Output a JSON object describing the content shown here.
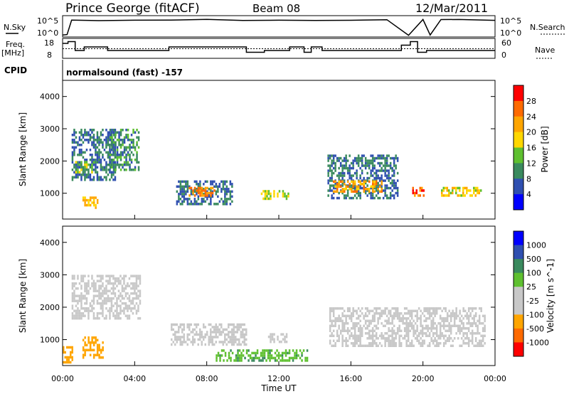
{
  "header": {
    "station": "Prince George (fitACF)",
    "beam": "Beam 08",
    "date": "12/Mar/2011"
  },
  "status_panel": {
    "nsky_label": "N.Sky",
    "nsky_ticks": [
      "10^5",
      "10^0"
    ],
    "nsearch_label": "N.Search",
    "nsearch_ticks": [
      "10^5",
      "10^0"
    ],
    "freq_label_1": "Freq.",
    "freq_label_2": "[MHz]",
    "freq_ticks": [
      "18",
      "8"
    ],
    "nave_label": "Nave",
    "nave_ticks": [
      "60",
      "0"
    ],
    "cpid_label": "CPID",
    "cpid_text": "normalsound (fast) -157"
  },
  "colors": {
    "power_scale": [
      "#0000ff",
      "#2f4fb0",
      "#3a8a5e",
      "#5fc030",
      "#ffd700",
      "#ffa500",
      "#ff6a00",
      "#ff0000"
    ],
    "velocity_scale": [
      "#ff0000",
      "#ff6a00",
      "#ffa500",
      "#c8c8c8",
      "#c8c8c8",
      "#5fc030",
      "#3a8a5e",
      "#2f4fb0",
      "#0000ff"
    ],
    "ground_scatter": "#c8c8c8"
  },
  "chart_data": [
    {
      "type": "line",
      "panel": "N.Sky / N.Search",
      "x_unit": "hours UT",
      "xlim": [
        0,
        24
      ],
      "series": [
        {
          "name": "N.Sky",
          "x": [
            0,
            0.25,
            0.5,
            2,
            4,
            6,
            8,
            10,
            12,
            14,
            16,
            18,
            19.2,
            20,
            20.4,
            21,
            22,
            24
          ],
          "values": [
            1,
            1,
            100000,
            100000,
            100000,
            100000,
            100000,
            100000,
            100000,
            100000,
            100000,
            100000,
            1,
            100000,
            1,
            100000,
            100000,
            100000
          ]
        }
      ]
    },
    {
      "type": "line",
      "panel": "Freq. / Nave",
      "x_unit": "hours UT",
      "xlim": [
        0,
        24
      ],
      "series": [
        {
          "name": "Freq.",
          "x": [
            0,
            0.3,
            0.7,
            1.2,
            2.5,
            5.9,
            10.2,
            11.2,
            12.6,
            13.4,
            13.8,
            14.4,
            15.7,
            18.8,
            19.3,
            19.7,
            20.2,
            21.3,
            24
          ],
          "values": [
            16,
            17,
            12,
            14,
            12,
            14,
            11,
            12,
            14,
            11,
            14,
            12,
            12,
            15,
            17,
            11,
            12,
            12,
            12
          ]
        },
        {
          "name": "Nave",
          "x": [
            0,
            24
          ],
          "values": [
            30,
            30
          ]
        }
      ]
    },
    {
      "type": "heatmap",
      "panel": "Power",
      "xlabel": "Time UT",
      "ylabel": "Slant Range [km]",
      "colorbar_label": "Power [dB]",
      "xlim": [
        0,
        24
      ],
      "ylim": [
        200,
        4500
      ],
      "xticks": [
        "00:00",
        "04:00",
        "08:00",
        "12:00",
        "16:00",
        "20:00",
        "00:00"
      ],
      "yticks": [
        "1000",
        "2000",
        "3000",
        "4000"
      ],
      "colorbar_ticks": [
        "4",
        "8",
        "12",
        "16",
        "20",
        "24",
        "28"
      ],
      "echo_regions": [
        {
          "t0": 0.5,
          "t1": 3.0,
          "r0": 1400,
          "r1": 3000,
          "level": 8
        },
        {
          "t0": 0.7,
          "t1": 1.8,
          "r0": 1600,
          "r1": 2000,
          "level": 14
        },
        {
          "t0": 1.1,
          "t1": 2.0,
          "r0": 500,
          "r1": 900,
          "level": 20
        },
        {
          "t0": 2.5,
          "t1": 4.3,
          "r0": 1700,
          "r1": 3000,
          "level": 10
        },
        {
          "t0": 6.3,
          "t1": 9.5,
          "r0": 600,
          "r1": 1400,
          "level": 8
        },
        {
          "t0": 7.0,
          "t1": 8.5,
          "r0": 900,
          "r1": 1200,
          "level": 24
        },
        {
          "t0": 11.0,
          "t1": 12.6,
          "r0": 800,
          "r1": 1100,
          "level": 16
        },
        {
          "t0": 14.7,
          "t1": 18.6,
          "r0": 800,
          "r1": 2200,
          "level": 8
        },
        {
          "t0": 15.0,
          "t1": 17.8,
          "r0": 1000,
          "r1": 1400,
          "level": 22
        },
        {
          "t0": 19.4,
          "t1": 20.1,
          "r0": 900,
          "r1": 1200,
          "level": 26
        },
        {
          "t0": 21.0,
          "t1": 23.3,
          "r0": 900,
          "r1": 1200,
          "level": 18
        }
      ]
    },
    {
      "type": "heatmap",
      "panel": "Velocity",
      "xlabel": "Time UT",
      "ylabel": "Slant Range [km]",
      "colorbar_label": "Velocity [m s^-1]",
      "xlim": [
        0,
        24
      ],
      "ylim": [
        200,
        4500
      ],
      "xticks": [
        "00:00",
        "04:00",
        "08:00",
        "12:00",
        "16:00",
        "20:00",
        "00:00"
      ],
      "yticks": [
        "1000",
        "2000",
        "3000",
        "4000"
      ],
      "colorbar_ticks": [
        "-1000",
        "-500",
        "-100",
        "-25",
        "25",
        "100",
        "500",
        "1000"
      ],
      "echo_regions": [
        {
          "t0": 0.5,
          "t1": 4.3,
          "r0": 1600,
          "r1": 3000,
          "velocity": 0,
          "ground": true
        },
        {
          "t0": 0.0,
          "t1": 0.6,
          "r0": 300,
          "r1": 800,
          "velocity": -300
        },
        {
          "t0": 1.1,
          "t1": 2.3,
          "r0": 400,
          "r1": 1100,
          "velocity": -300
        },
        {
          "t0": 6.0,
          "t1": 10.2,
          "r0": 800,
          "r1": 1500,
          "velocity": 0,
          "ground": true
        },
        {
          "t0": 11.3,
          "t1": 12.5,
          "r0": 900,
          "r1": 1200,
          "velocity": 0,
          "ground": true
        },
        {
          "t0": 14.8,
          "t1": 23.5,
          "r0": 800,
          "r1": 2000,
          "velocity": 0,
          "ground": true
        },
        {
          "t0": 8.5,
          "t1": 13.6,
          "r0": 300,
          "r1": 700,
          "velocity": 80
        }
      ]
    }
  ]
}
